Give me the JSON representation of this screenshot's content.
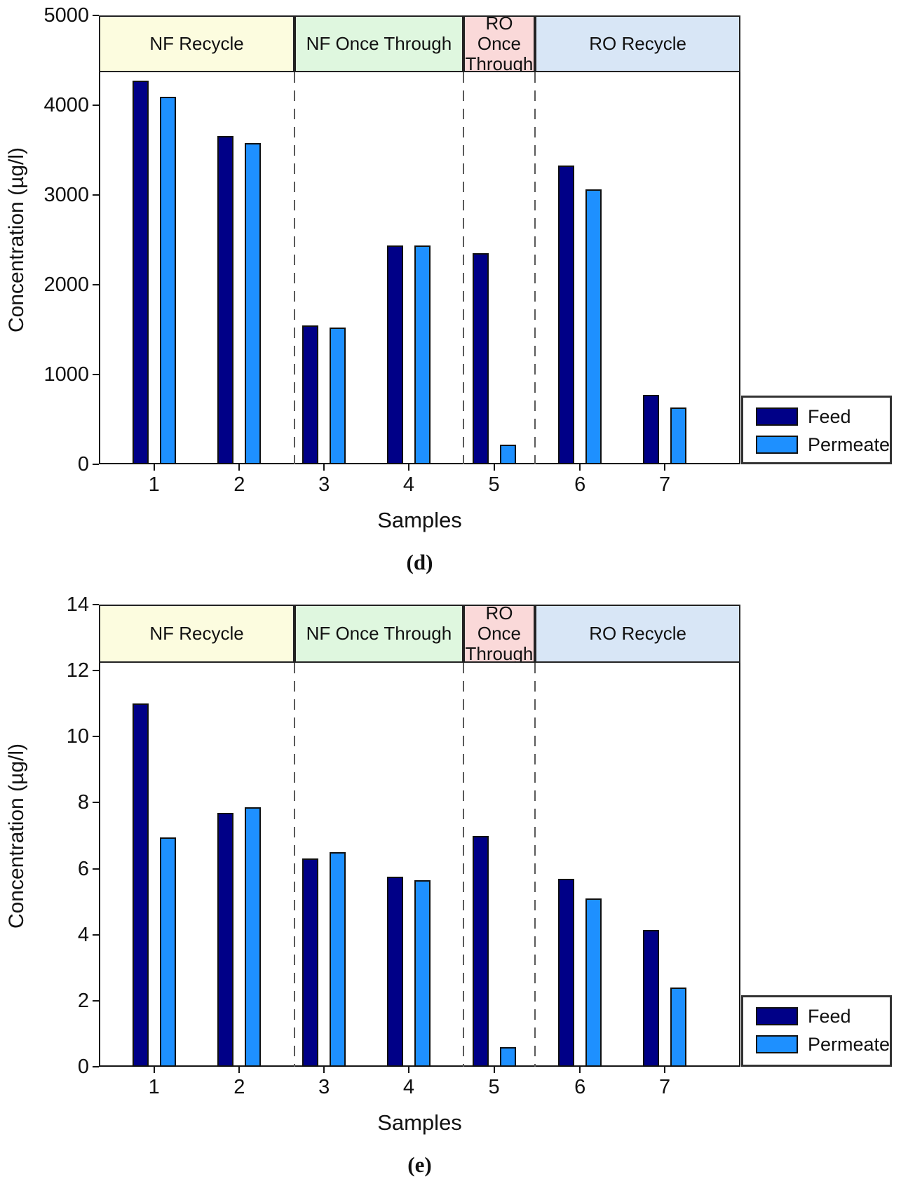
{
  "figure": {
    "background": "#ffffff",
    "axis_color": "#161616",
    "text_color": "#111111",
    "dash_line_color": "#5a5a5a"
  },
  "chart_data": [
    {
      "type": "bar",
      "caption": "(d)",
      "xlabel": "Samples",
      "ylabel": "Concentration (µg/l)",
      "ylim": [
        0,
        5000
      ],
      "yticks": [
        "0",
        "1000",
        "2000",
        "3000",
        "4000",
        "5000"
      ],
      "categories": [
        "1",
        "2",
        "3",
        "4",
        "5",
        "6",
        "7"
      ],
      "series": [
        {
          "name": "Feed",
          "color": "#000087",
          "values": [
            4270,
            3660,
            1550,
            2440,
            2350,
            3330,
            775
          ]
        },
        {
          "name": "Permeate",
          "color": "#1E90FF",
          "values": [
            4090,
            3580,
            1520,
            2440,
            220,
            3060,
            630
          ]
        }
      ],
      "regions": [
        {
          "label": "NF Recycle",
          "color": "#FCFCDF",
          "span": [
            0,
            0.305
          ]
        },
        {
          "label": "NF Once Through",
          "color": "#DFF7DF",
          "span": [
            0.305,
            0.568
          ]
        },
        {
          "label": "RO Once Through",
          "color": "#FAD9D9",
          "span": [
            0.568,
            0.68
          ]
        },
        {
          "label": "RO Recycle",
          "color": "#D8E6F6",
          "span": [
            0.68,
            1
          ]
        }
      ],
      "legend": {
        "entries": [
          "Feed",
          "Permeate"
        ],
        "position": "bottom-right"
      },
      "grid": false
    },
    {
      "type": "bar",
      "caption": "(e)",
      "xlabel": "Samples",
      "ylabel": "Concentration (µg/l)",
      "ylim": [
        0,
        14
      ],
      "yticks": [
        "0",
        "2",
        "4",
        "6",
        "8",
        "10",
        "12",
        "14"
      ],
      "categories": [
        "1",
        "2",
        "3",
        "4",
        "5",
        "6",
        "7"
      ],
      "series": [
        {
          "name": "Feed",
          "color": "#000087",
          "values": [
            11.0,
            7.7,
            6.3,
            5.75,
            7.0,
            5.7,
            4.15
          ]
        },
        {
          "name": "Permeate",
          "color": "#1E90FF",
          "values": [
            6.95,
            7.85,
            6.5,
            5.65,
            0.6,
            5.1,
            2.4
          ]
        }
      ],
      "regions": [
        {
          "label": "NF Recycle",
          "color": "#FCFCDF",
          "span": [
            0,
            0.305
          ]
        },
        {
          "label": "NF Once Through",
          "color": "#DFF7DF",
          "span": [
            0.305,
            0.568
          ]
        },
        {
          "label": "RO Once Through",
          "color": "#FAD9D9",
          "span": [
            0.568,
            0.68
          ]
        },
        {
          "label": "RO Recycle",
          "color": "#D8E6F6",
          "span": [
            0.68,
            1
          ]
        }
      ],
      "legend": {
        "entries": [
          "Feed",
          "Permeate"
        ],
        "position": "bottom-right"
      },
      "grid": false
    }
  ]
}
